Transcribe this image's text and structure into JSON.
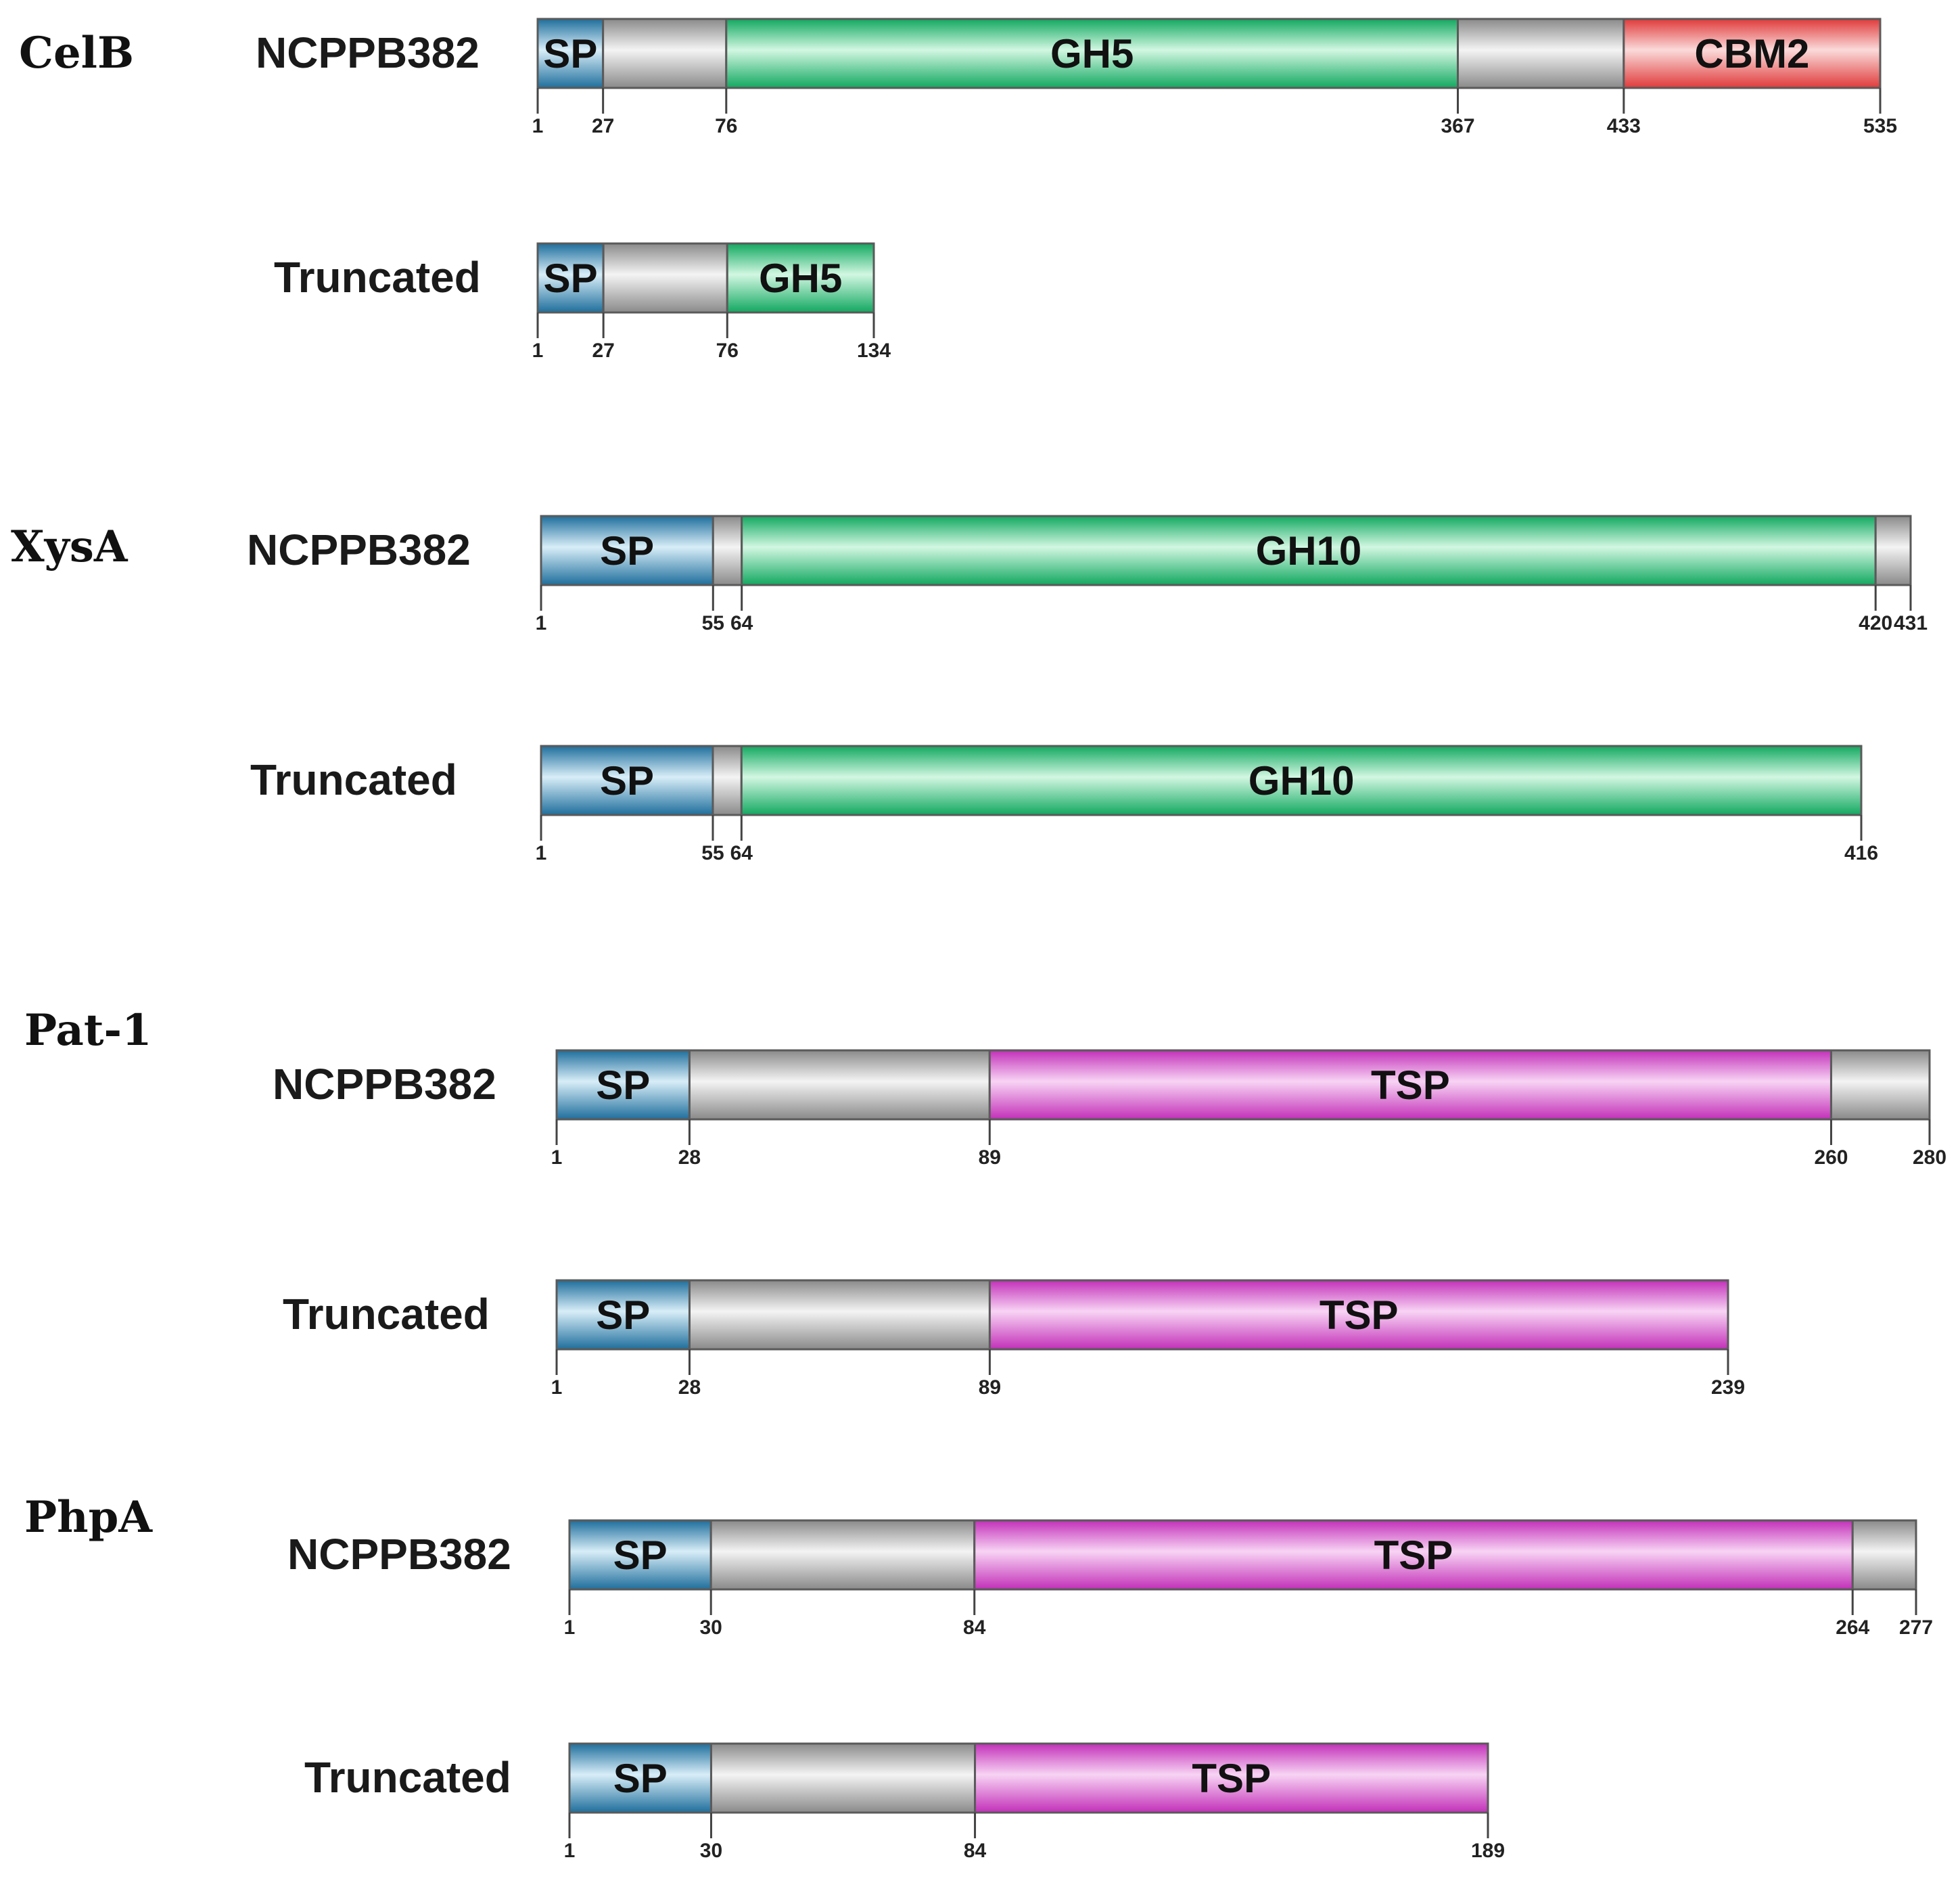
{
  "figure": {
    "proteins": [
      {
        "name": "CelB",
        "constructs": [
          {
            "label": "NCPPB382",
            "length": 535,
            "segments": [
              {
                "start": 1,
                "end": 27,
                "kind": "sp",
                "label": "SP"
              },
              {
                "start": 27,
                "end": 76,
                "kind": "linker",
                "label": ""
              },
              {
                "start": 76,
                "end": 367,
                "kind": "gh",
                "label": "GH5"
              },
              {
                "start": 367,
                "end": 433,
                "kind": "linker",
                "label": ""
              },
              {
                "start": 433,
                "end": 535,
                "kind": "cbm",
                "label": "CBM2"
              }
            ],
            "ticks": [
              "1",
              "27",
              "76",
              "367",
              "433",
              "535"
            ]
          },
          {
            "label": "Truncated",
            "length": 134,
            "segments": [
              {
                "start": 1,
                "end": 27,
                "kind": "sp",
                "label": "SP"
              },
              {
                "start": 27,
                "end": 76,
                "kind": "linker",
                "label": ""
              },
              {
                "start": 76,
                "end": 134,
                "kind": "gh",
                "label": "GH5"
              }
            ],
            "ticks": [
              "1",
              "27",
              "76",
              "134"
            ]
          }
        ]
      },
      {
        "name": "XysA",
        "constructs": [
          {
            "label": "NCPPB382",
            "length": 431,
            "segments": [
              {
                "start": 1,
                "end": 55,
                "kind": "sp",
                "label": "SP"
              },
              {
                "start": 55,
                "end": 64,
                "kind": "linker",
                "label": ""
              },
              {
                "start": 64,
                "end": 420,
                "kind": "gh",
                "label": "GH10"
              },
              {
                "start": 420,
                "end": 431,
                "kind": "linker",
                "label": ""
              }
            ],
            "ticks": [
              "1",
              "55",
              "64",
              "420",
              "431"
            ]
          },
          {
            "label": "Truncated",
            "length": 416,
            "segments": [
              {
                "start": 1,
                "end": 55,
                "kind": "sp",
                "label": "SP"
              },
              {
                "start": 55,
                "end": 64,
                "kind": "linker",
                "label": ""
              },
              {
                "start": 64,
                "end": 416,
                "kind": "gh",
                "label": "GH10"
              }
            ],
            "ticks": [
              "1",
              "55",
              "64",
              "416"
            ]
          }
        ]
      },
      {
        "name": "Pat-1",
        "constructs": [
          {
            "label": "NCPPB382",
            "length": 280,
            "segments": [
              {
                "start": 1,
                "end": 28,
                "kind": "sp",
                "label": "SP"
              },
              {
                "start": 28,
                "end": 89,
                "kind": "linker",
                "label": ""
              },
              {
                "start": 89,
                "end": 260,
                "kind": "tsp",
                "label": "TSP"
              },
              {
                "start": 260,
                "end": 280,
                "kind": "linker",
                "label": ""
              }
            ],
            "ticks": [
              "1",
              "28",
              "89",
              "260",
              "280"
            ]
          },
          {
            "label": "Truncated",
            "length": 239,
            "segments": [
              {
                "start": 1,
                "end": 28,
                "kind": "sp",
                "label": "SP"
              },
              {
                "start": 28,
                "end": 89,
                "kind": "linker",
                "label": ""
              },
              {
                "start": 89,
                "end": 239,
                "kind": "tsp",
                "label": "TSP"
              }
            ],
            "ticks": [
              "1",
              "28",
              "89",
              "239"
            ]
          }
        ]
      },
      {
        "name": "PhpA",
        "constructs": [
          {
            "label": "NCPPB382",
            "length": 277,
            "segments": [
              {
                "start": 1,
                "end": 30,
                "kind": "sp",
                "label": "SP"
              },
              {
                "start": 30,
                "end": 84,
                "kind": "linker",
                "label": ""
              },
              {
                "start": 84,
                "end": 264,
                "kind": "tsp",
                "label": "TSP"
              },
              {
                "start": 264,
                "end": 277,
                "kind": "linker",
                "label": ""
              }
            ],
            "ticks": [
              "1",
              "30",
              "84",
              "264",
              "277"
            ]
          },
          {
            "label": "Truncated",
            "length": 189,
            "segments": [
              {
                "start": 1,
                "end": 30,
                "kind": "sp",
                "label": "SP"
              },
              {
                "start": 30,
                "end": 84,
                "kind": "linker",
                "label": ""
              },
              {
                "start": 84,
                "end": 189,
                "kind": "tsp",
                "label": "TSP"
              }
            ],
            "ticks": [
              "1",
              "30",
              "84",
              "189"
            ]
          }
        ]
      }
    ],
    "colors": {
      "sp": [
        "#1e6e9c",
        "#d8eef8"
      ],
      "linker": [
        "#8a8a8a",
        "#f4f4f4"
      ],
      "gh": [
        "#12a860",
        "#d2f7e2"
      ],
      "cbm": [
        "#e03a3a",
        "#fbdada"
      ],
      "tsp": [
        "#c230b8",
        "#f8d4f4"
      ]
    }
  }
}
